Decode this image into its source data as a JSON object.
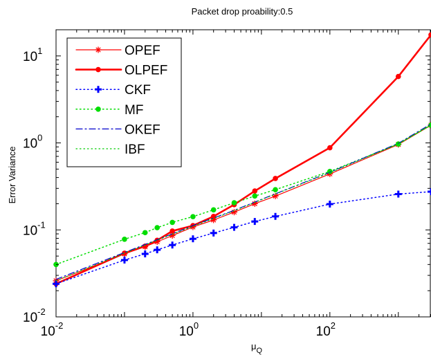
{
  "chart_data": {
    "type": "line",
    "title": "Packet drop proability:0.5",
    "xlabel": {
      "base": "μ",
      "sub": "Q"
    },
    "ylabel": "Error Variance",
    "xscale": "log",
    "yscale": "log",
    "xlim": [
      0.01,
      3000
    ],
    "ylim": [
      0.01,
      20
    ],
    "grid": false,
    "legend_position": "top-left",
    "xticks": [
      {
        "value": 0.01,
        "base": "10",
        "exp": "-2"
      },
      {
        "value": 1,
        "base": "10",
        "exp": "0"
      },
      {
        "value": 100,
        "base": "10",
        "exp": "2"
      }
    ],
    "yticks": [
      {
        "value": 0.01,
        "base": "10",
        "exp": "-2"
      },
      {
        "value": 0.1,
        "base": "10",
        "exp": "-1"
      },
      {
        "value": 1,
        "base": "10",
        "exp": "0"
      },
      {
        "value": 10,
        "base": "10",
        "exp": "1"
      }
    ],
    "series": [
      {
        "name": "OPEF",
        "color": "#ff0000",
        "dash": "solid",
        "width": 1.2,
        "marker": "asterisk",
        "x": [
          0.01,
          0.1,
          0.2,
          0.3,
          0.5,
          1,
          2,
          4,
          8,
          16,
          100,
          1000,
          3000
        ],
        "y": [
          0.026,
          0.053,
          0.064,
          0.073,
          0.086,
          0.108,
          0.13,
          0.16,
          0.2,
          0.245,
          0.44,
          0.96,
          1.6
        ]
      },
      {
        "name": "OLPEF",
        "color": "#ff0000",
        "dash": "solid",
        "width": 2.6,
        "marker": "dot",
        "x": [
          0.01,
          0.1,
          0.2,
          0.3,
          0.5,
          1,
          2,
          4,
          8,
          16,
          100,
          1000,
          3000
        ],
        "y": [
          0.024,
          0.054,
          0.065,
          0.076,
          0.097,
          0.112,
          0.143,
          0.195,
          0.28,
          0.39,
          0.88,
          5.8,
          17.5
        ]
      },
      {
        "name": "CKF",
        "color": "#0000ff",
        "dash": "dotted",
        "width": 1.5,
        "marker": "plus",
        "x": [
          0.01,
          0.1,
          0.2,
          0.3,
          0.5,
          1,
          2,
          4,
          8,
          16,
          100,
          1000,
          3000
        ],
        "y": [
          0.024,
          0.045,
          0.053,
          0.059,
          0.067,
          0.079,
          0.092,
          0.107,
          0.125,
          0.143,
          0.198,
          0.258,
          0.275
        ]
      },
      {
        "name": "MF",
        "color": "#00dd00",
        "dash": "dotted",
        "width": 1.5,
        "marker": "dot",
        "x": [
          0.01,
          0.1,
          0.2,
          0.3,
          0.5,
          1,
          2,
          4,
          8,
          16,
          100,
          1000,
          3000
        ],
        "y": [
          0.04,
          0.078,
          0.093,
          0.106,
          0.122,
          0.142,
          0.17,
          0.205,
          0.245,
          0.29,
          0.47,
          0.97,
          1.6
        ]
      },
      {
        "name": "OKEF",
        "color": "#0000cc",
        "dash": "dashdot",
        "width": 1.2,
        "marker": "none",
        "x": [
          0.01,
          0.1,
          0.5,
          1,
          4,
          16,
          100,
          1000,
          3000
        ],
        "y": [
          0.027,
          0.055,
          0.09,
          0.112,
          0.168,
          0.26,
          0.46,
          0.99,
          1.65
        ]
      },
      {
        "name": "IBF",
        "color": "#00cc00",
        "dash": "dotted",
        "width": 1.2,
        "marker": "none",
        "x": [
          0.01,
          0.1,
          0.5,
          1,
          4,
          16,
          100,
          1000,
          3000
        ],
        "y": [
          0.026,
          0.054,
          0.089,
          0.11,
          0.166,
          0.258,
          0.455,
          0.98,
          1.62
        ]
      }
    ]
  }
}
